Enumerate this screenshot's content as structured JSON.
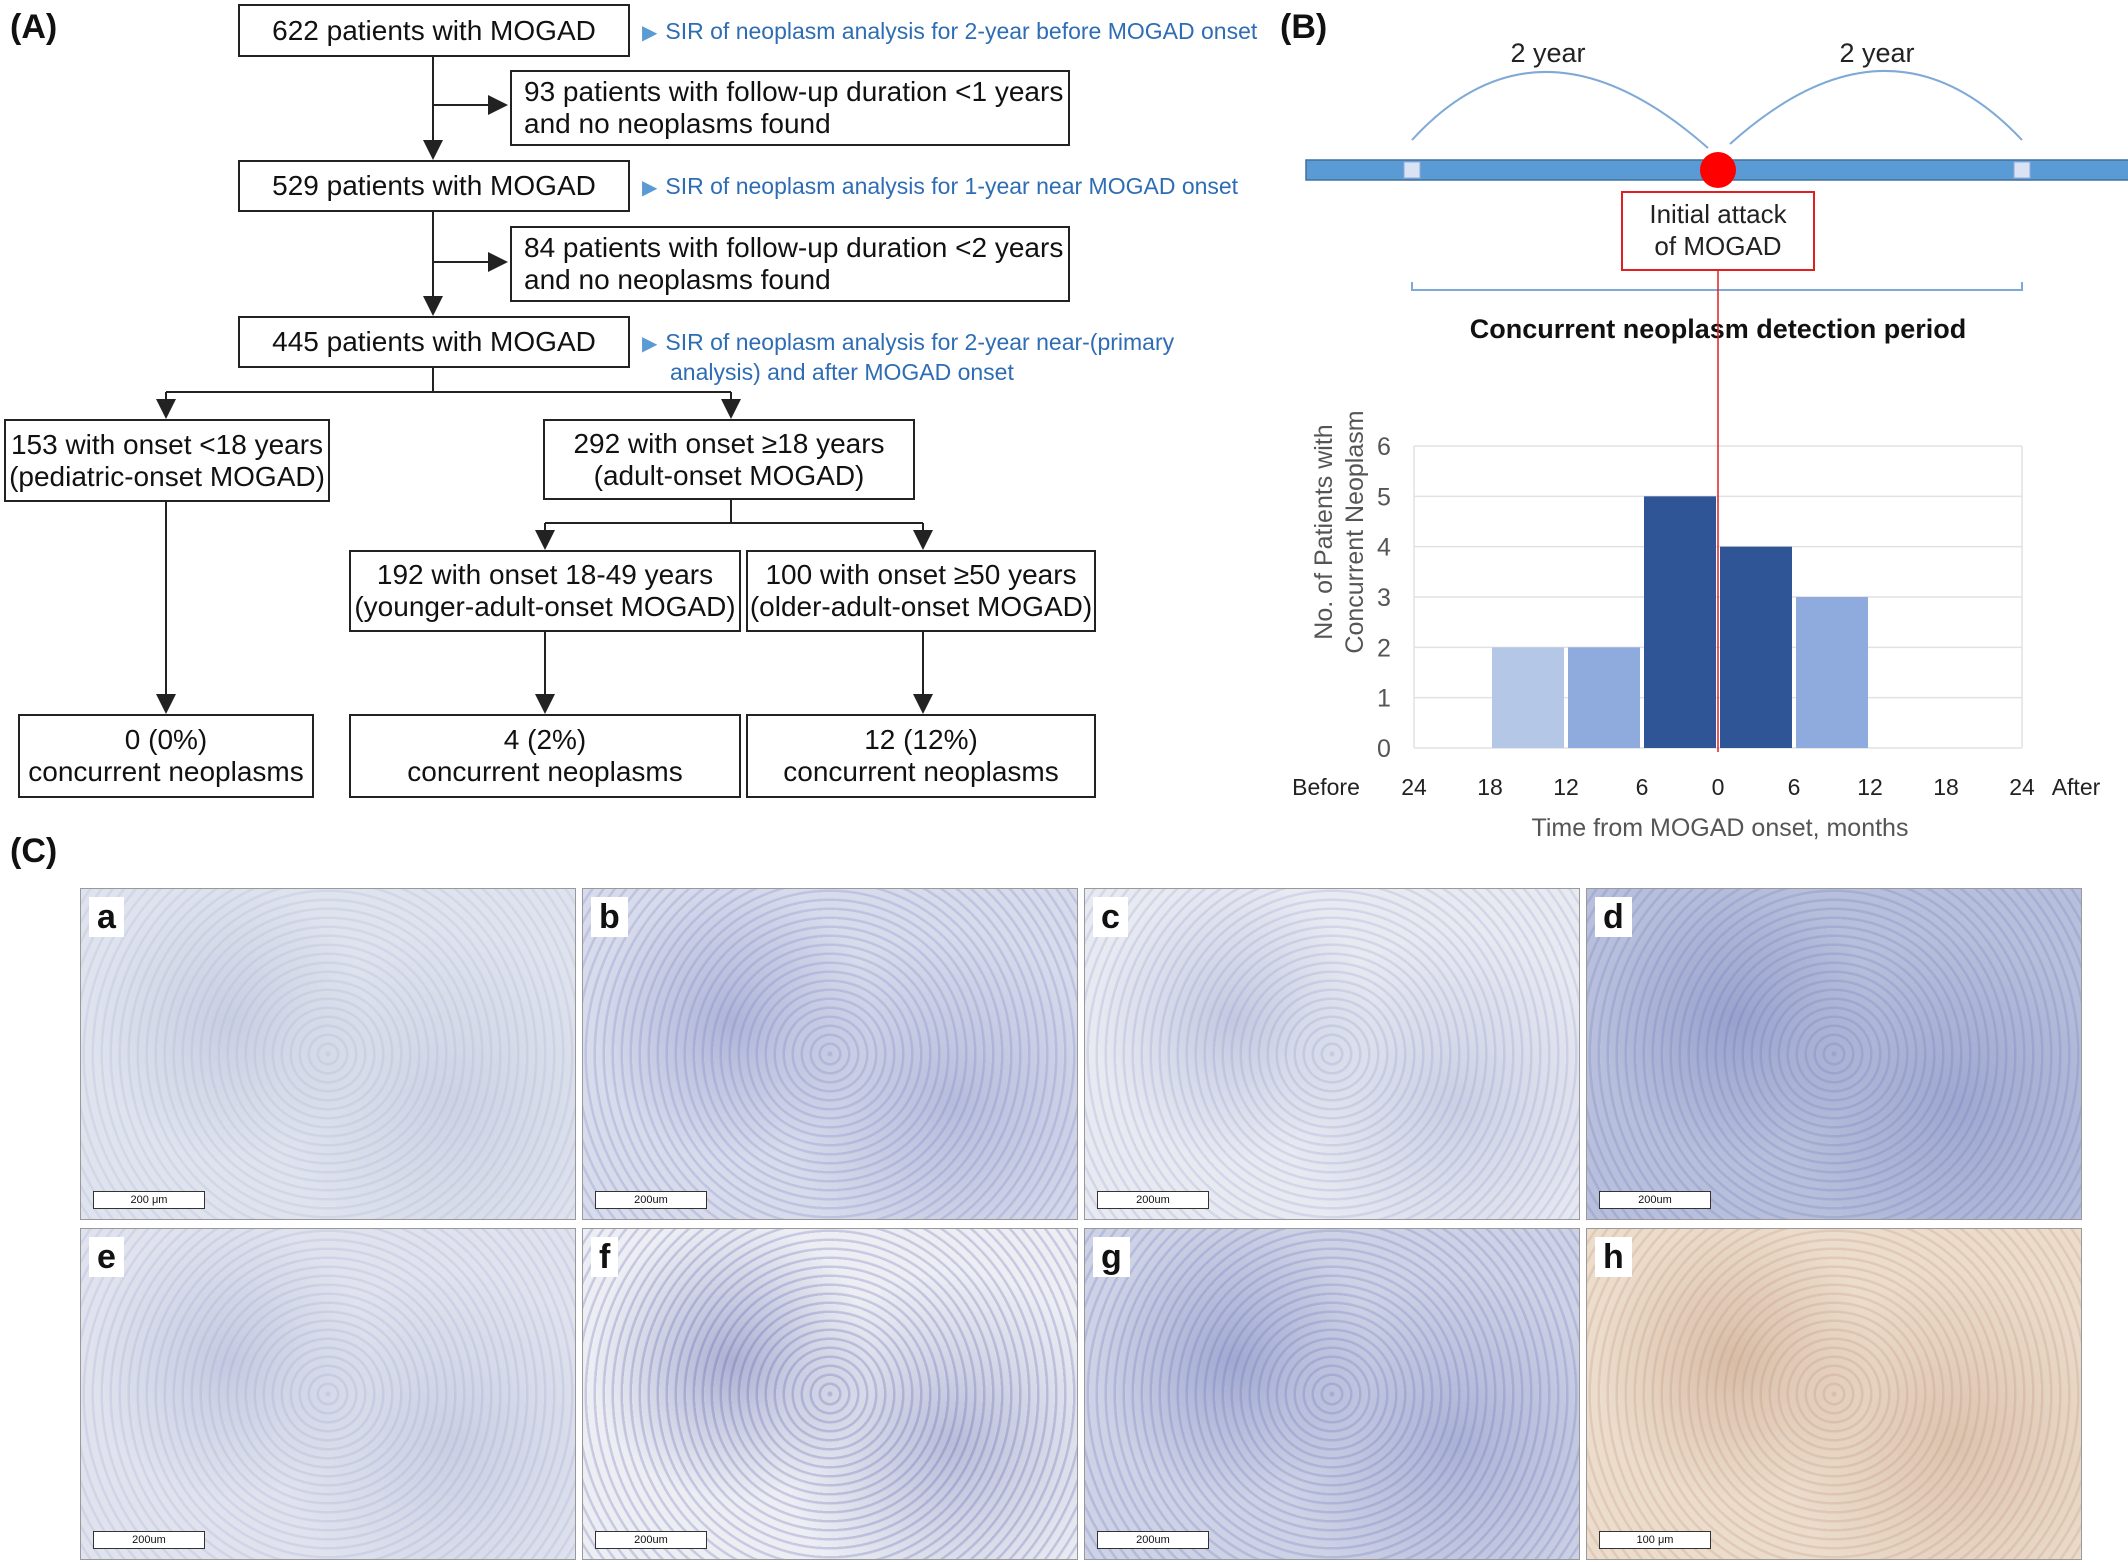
{
  "panelA": {
    "label": "(A)",
    "box1": "622 patients with MOGAD",
    "sir1": "SIR of neoplasm analysis for 2-year before MOGAD onset",
    "excl1_l1": "93 patients with follow-up duration <1 years",
    "excl1_l2": "and no neoplasms found",
    "box2": "529 patients with MOGAD",
    "sir2": "SIR of neoplasm analysis for 1-year near MOGAD onset",
    "excl2_l1": "84 patients with follow-up duration <2 years",
    "excl2_l2": "and no neoplasms found",
    "box3": "445 patients with MOGAD",
    "sir3_l1": "SIR of neoplasm analysis for 2-year near-(primary",
    "sir3_l2": "analysis) and after MOGAD onset",
    "ped_l1": "153 with onset <18 years",
    "ped_l2": "(pediatric-onset MOGAD)",
    "adult_l1": "292 with onset ≥18 years",
    "adult_l2": "(adult-onset MOGAD)",
    "young_l1": "192 with onset 18-49 years",
    "young_l2": "(younger-adult-onset MOGAD)",
    "old_l1": "100 with onset ≥50 years",
    "old_l2": "(older-adult-onset MOGAD)",
    "res_ped_l1": "0 (0%)",
    "res_young_l1": "4 (2%)",
    "res_old_l1": "12 (12%)",
    "res_l2": "concurrent neoplasms"
  },
  "panelB": {
    "label": "(B)",
    "arc_left": "2 year",
    "arc_right": "2 year",
    "initial_l1": "Initial attack",
    "initial_l2": "of MOGAD",
    "period_title": "Concurrent neoplasm detection period",
    "before": "Before",
    "after": "After"
  },
  "chart_data": {
    "type": "bar",
    "title": "",
    "xlabel": "Time from MOGAD onset, months",
    "ylabel": "No. of Patients with Concurrent Neoplasm",
    "ylabel_lines": [
      "No. of Patients with",
      "Concurrent Neoplasm"
    ],
    "ylim": [
      0,
      6
    ],
    "yticks": [
      0,
      1,
      2,
      3,
      4,
      5,
      6
    ],
    "xticks": [
      "24",
      "18",
      "12",
      "6",
      "0",
      "6",
      "12",
      "18",
      "24"
    ],
    "bars": [
      {
        "x_start": -18,
        "x_end": -12,
        "value": 2,
        "color": "#b4c7e7"
      },
      {
        "x_start": -12,
        "x_end": -6,
        "value": 2,
        "color": "#8faadc"
      },
      {
        "x_start": -6,
        "x_end": 0,
        "value": 5,
        "color": "#2f5597"
      },
      {
        "x_start": 0,
        "x_end": 6,
        "value": 4,
        "color": "#2f5597"
      },
      {
        "x_start": 6,
        "x_end": 12,
        "value": 3,
        "color": "#8faadc"
      }
    ],
    "grid": true
  },
  "panelC": {
    "label": "(C)",
    "images": [
      {
        "letter": "a",
        "scale": "200 μm",
        "bg": "#dfe3ee",
        "cell": "#9aa6c8"
      },
      {
        "letter": "b",
        "scale": "200um",
        "bg": "#d7dbec",
        "cell": "#5c66b0"
      },
      {
        "letter": "c",
        "scale": "200um",
        "bg": "#e8eaf2",
        "cell": "#7a86bd"
      },
      {
        "letter": "d",
        "scale": "200um",
        "bg": "#b7bfdc",
        "cell": "#5a67ad"
      },
      {
        "letter": "e",
        "scale": "200um",
        "bg": "#e0e3ee",
        "cell": "#8d97c5"
      },
      {
        "letter": "f",
        "scale": "200um",
        "bg": "#eceef4",
        "cell": "#2f3590"
      },
      {
        "letter": "g",
        "scale": "200um",
        "bg": "#cdd2e6",
        "cell": "#4c58a8"
      },
      {
        "letter": "h",
        "scale": "100 μm",
        "bg": "#ecdccc",
        "cell": "#b08060"
      }
    ]
  }
}
